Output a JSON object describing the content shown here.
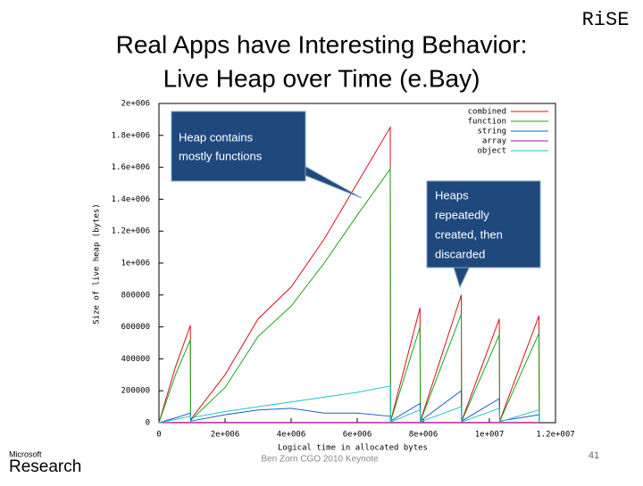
{
  "slide_title": [
    "Real Apps have Interesting Behavior:",
    "Live Heap over Time (e.Bay)"
  ],
  "logo_rise": "RiSE",
  "logo_ms": [
    "Microsoft",
    "Research"
  ],
  "footer": "Ben Zorn CGO 2010 Keynote",
  "page_number": "41",
  "callouts": [
    {
      "lines": [
        "Heap contains",
        "mostly functions"
      ]
    },
    {
      "lines": [
        "Heaps",
        "repeatedly",
        "created, then",
        "discarded"
      ]
    }
  ],
  "chart_data": {
    "type": "line",
    "x_label": "Logical time in allocated bytes",
    "y_label": "Size of live heap (bytes)",
    "x": [
      0,
      500000,
      950000,
      960000,
      2000000,
      3000000,
      4000000,
      5000000,
      6000000,
      7000000,
      7010000,
      7900000,
      7910000,
      9150000,
      9160000,
      10300000,
      10310000,
      11500000,
      11510000
    ],
    "series": [
      {
        "name": "combined",
        "color": "#d8101c",
        "values": [
          0,
          350000,
          610000,
          20000,
          300000,
          650000,
          850000,
          1150000,
          1500000,
          1850000,
          10000,
          720000,
          10000,
          800000,
          10000,
          650000,
          10000,
          670000,
          10000
        ]
      },
      {
        "name": "function",
        "color": "#1fa01f",
        "values": [
          0,
          300000,
          520000,
          15000,
          220000,
          540000,
          730000,
          1000000,
          1300000,
          1590000,
          8000,
          600000,
          8000,
          680000,
          8000,
          550000,
          8000,
          560000,
          8000
        ]
      },
      {
        "name": "string",
        "color": "#1f5fbf",
        "values": [
          0,
          30000,
          60000,
          10000,
          50000,
          80000,
          90000,
          60000,
          60000,
          40000,
          10000,
          120000,
          10000,
          200000,
          10000,
          150000,
          10000,
          50000,
          10000
        ]
      },
      {
        "name": "array",
        "color": "#c000a0",
        "values": [
          0,
          1000,
          1000,
          1000,
          1000,
          1000,
          1000,
          1000,
          1000,
          1000,
          1000,
          1000,
          1000,
          1000,
          1000,
          1000,
          1000,
          1000,
          1000
        ]
      },
      {
        "name": "object",
        "color": "#20c0d0",
        "values": [
          0,
          20000,
          40000,
          30000,
          70000,
          100000,
          130000,
          160000,
          190000,
          230000,
          5000,
          80000,
          5000,
          100000,
          5000,
          90000,
          5000,
          80000,
          5000
        ]
      }
    ],
    "xlim": [
      0,
      12000000
    ],
    "ylim": [
      0,
      2000000
    ],
    "xticks": [
      0,
      {
        "value": 2000000,
        "label": "2e+006"
      },
      {
        "value": 4000000,
        "label": "4e+006"
      },
      {
        "value": 6000000,
        "label": "6e+006"
      },
      {
        "value": 8000000,
        "label": "8e+006"
      },
      {
        "value": 10000000,
        "label": "1e+007"
      },
      {
        "value": 12000000,
        "label": "1.2e+007"
      }
    ],
    "yticks": [
      0,
      200000,
      400000,
      600000,
      800000,
      {
        "value": 1000000,
        "label": "1e+006"
      },
      {
        "value": 1200000,
        "label": "1.2e+006"
      },
      {
        "value": 1400000,
        "label": "1.4e+006"
      },
      {
        "value": 1600000,
        "label": "1.6e+006"
      },
      {
        "value": 1800000,
        "label": "1.8e+006"
      },
      {
        "value": 2000000,
        "label": "2e+006"
      }
    ],
    "legend": "top-right"
  }
}
